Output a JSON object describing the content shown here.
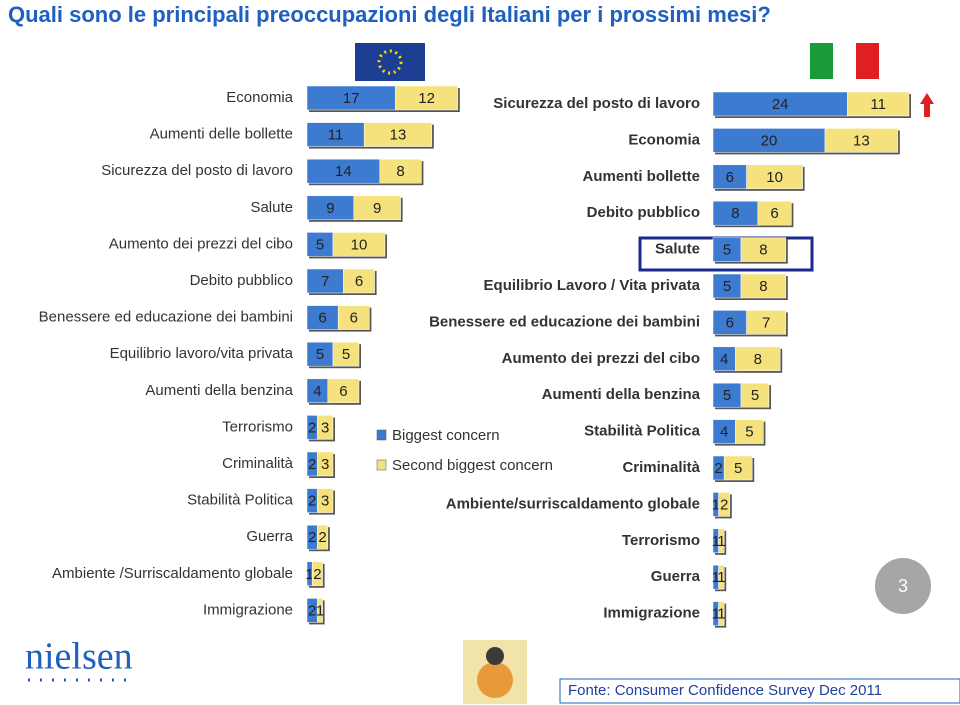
{
  "title": "Quali sono le principali preoccupazioni degli Italiani per i prossimi mesi?",
  "source": "Fonte: Consumer Confidence Survey Dec 2011",
  "page_number": "3",
  "logo": "nielsen",
  "chart_data": [
    {
      "type": "bar",
      "orientation": "horizontal",
      "stacked": true,
      "categories": [
        "Economia",
        "Aumenti delle bollette",
        "Sicurezza del posto di lavoro",
        "Salute",
        "Aumento dei prezzi del cibo",
        "Debito pubblico",
        "Benessere ed educazione dei bambini",
        "Equilibrio lavoro/vita privata",
        "Aumenti della benzina",
        "Terrorismo",
        "Criminalità",
        "Stabilità Politica",
        "Guerra",
        "Ambiente /Surriscaldamento globale",
        "Immigrazione"
      ],
      "series": [
        {
          "name": "Biggest concern",
          "color": "#3d7bd0",
          "values": [
            17,
            11,
            14,
            9,
            5,
            7,
            6,
            5,
            4,
            2,
            2,
            2,
            2,
            1,
            2
          ]
        },
        {
          "name": "Second biggest concern",
          "color": "#f6e27c",
          "values": [
            12,
            13,
            8,
            9,
            10,
            6,
            6,
            5,
            6,
            3,
            3,
            3,
            2,
            2,
            1
          ]
        }
      ]
    },
    {
      "type": "bar",
      "orientation": "horizontal",
      "stacked": true,
      "categories": [
        "Sicurezza del posto di lavoro",
        "Economia",
        "Aumenti bollette",
        "Debito pubblico",
        "Salute",
        "Equilibrio Lavoro / Vita privata",
        "Benessere ed educazione dei bambini",
        "Aumento dei prezzi del cibo",
        "Aumenti della benzina",
        "Stabilità Politica",
        "Criminalità",
        "Ambiente/surriscaldamento globale",
        "Terrorismo",
        "Guerra",
        "Immigrazione"
      ],
      "series": [
        {
          "color": "#3d7bd0",
          "values": [
            24,
            20,
            6,
            8,
            5,
            5,
            6,
            4,
            5,
            4,
            2,
            1,
            1,
            1,
            1
          ]
        },
        {
          "color": "#f6e27c",
          "values": [
            11,
            13,
            10,
            6,
            8,
            8,
            7,
            8,
            5,
            5,
            5,
            2,
            1,
            1,
            1
          ]
        }
      ]
    }
  ]
}
